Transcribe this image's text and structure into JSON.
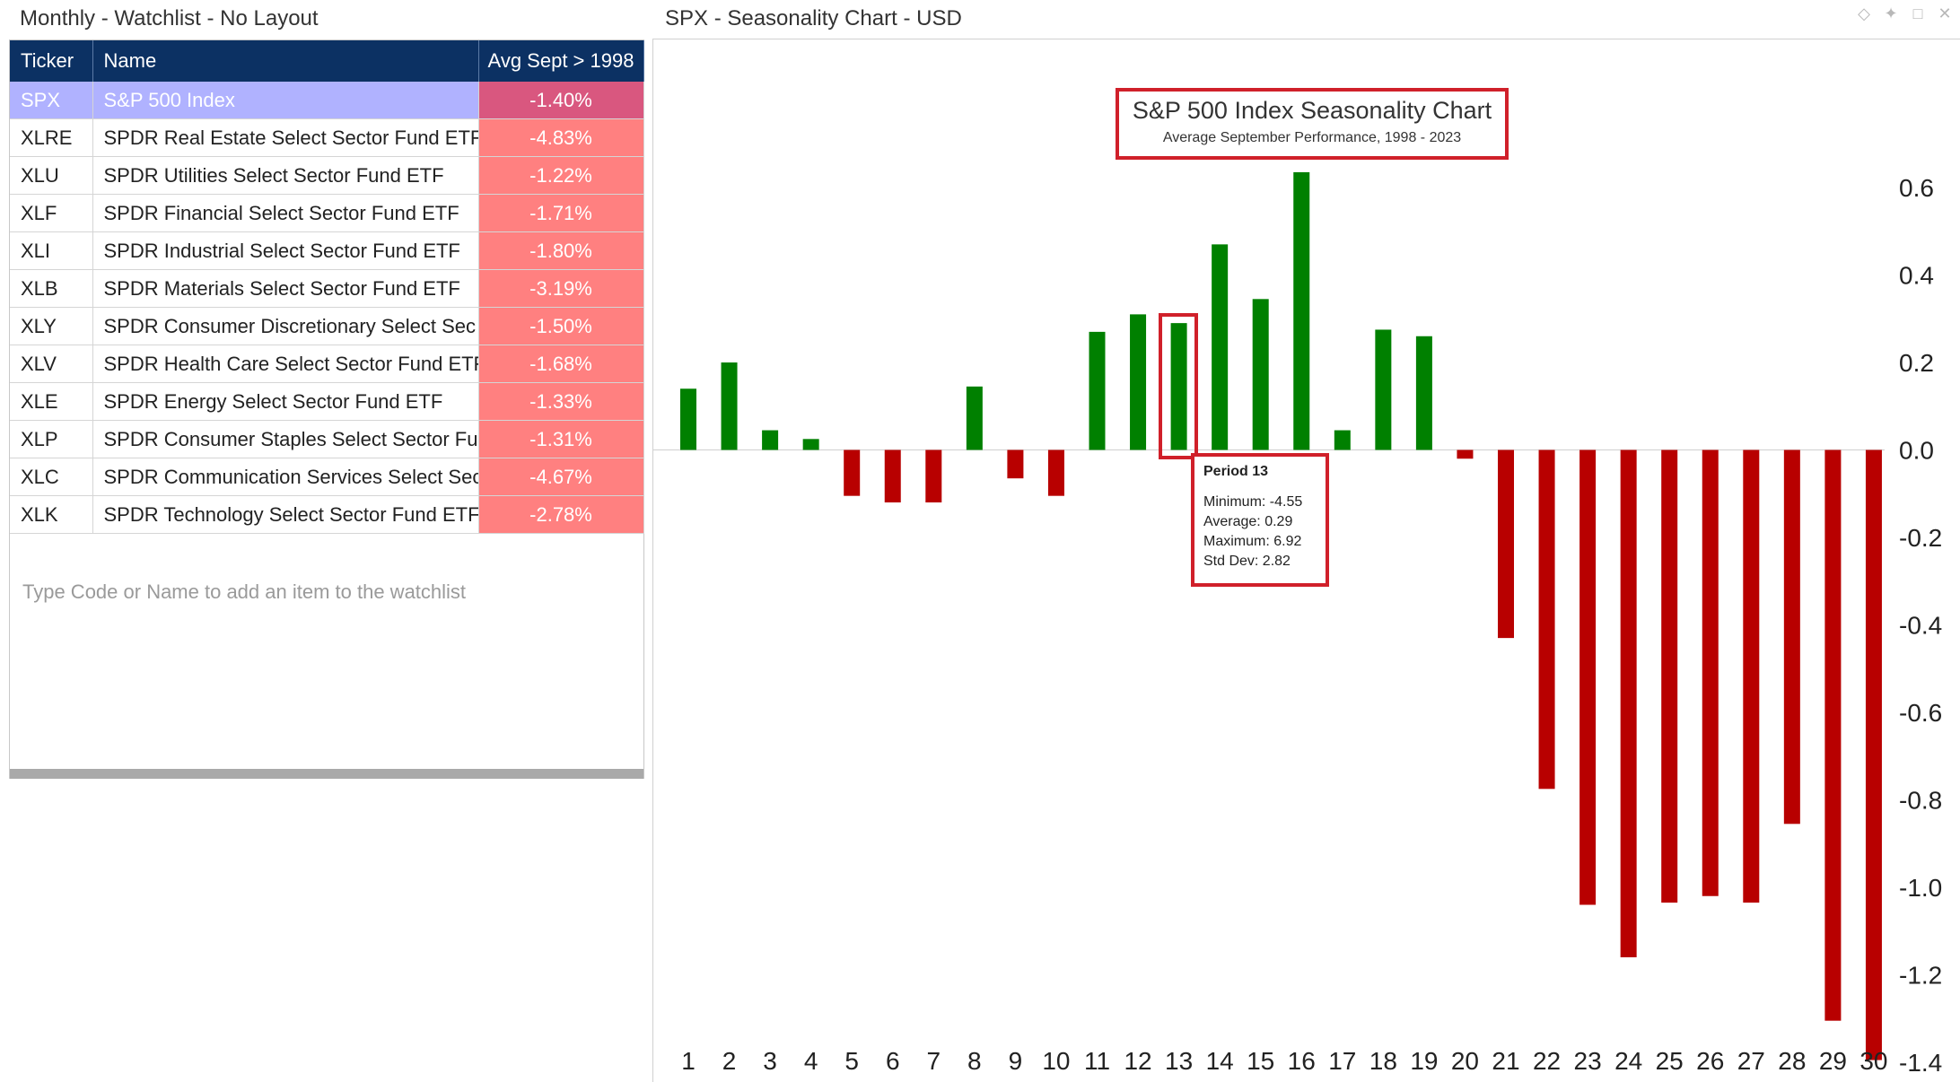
{
  "watchlist": {
    "title": "Monthly - Watchlist - No Layout",
    "columns": [
      "Ticker",
      "Name",
      "Avg Sept > 1998"
    ],
    "rows": [
      {
        "ticker": "SPX",
        "name": "S&P 500 Index",
        "value": "-1.40%",
        "selected": true
      },
      {
        "ticker": "XLRE",
        "name": "SPDR Real Estate Select Sector Fund ETF",
        "value": "-4.83%"
      },
      {
        "ticker": "XLU",
        "name": "SPDR Utilities Select Sector Fund ETF",
        "value": "-1.22%"
      },
      {
        "ticker": "XLF",
        "name": "SPDR Financial Select Sector Fund ETF",
        "value": "-1.71%"
      },
      {
        "ticker": "XLI",
        "name": "SPDR Industrial Select Sector Fund ETF",
        "value": "-1.80%"
      },
      {
        "ticker": "XLB",
        "name": "SPDR Materials Select Sector Fund ETF",
        "value": "-3.19%"
      },
      {
        "ticker": "XLY",
        "name": "SPDR Consumer Discretionary Select Sec",
        "value": "-1.50%"
      },
      {
        "ticker": "XLV",
        "name": "SPDR Health Care Select Sector Fund ETF",
        "value": "-1.68%"
      },
      {
        "ticker": "XLE",
        "name": "SPDR Energy Select Sector Fund ETF",
        "value": "-1.33%"
      },
      {
        "ticker": "XLP",
        "name": "SPDR Consumer Staples Select Sector Fu",
        "value": "-1.31%"
      },
      {
        "ticker": "XLC",
        "name": "SPDR Communication Services Select Sec",
        "value": "-4.67%"
      },
      {
        "ticker": "XLK",
        "name": "SPDR Technology Select Sector Fund ETF",
        "value": "-2.78%"
      }
    ],
    "add_placeholder": "Type Code or Name to add an item to the watchlist"
  },
  "chart_panel": {
    "title": "SPX - Seasonality Chart - USD",
    "window_icons": [
      "diamond-icon",
      "pin-icon",
      "maximize-icon",
      "close-icon"
    ]
  },
  "chart_data": {
    "type": "bar",
    "title": "S&P 500 Index Seasonality Chart",
    "subtitle": "Average September Performance, 1998 - 2023",
    "categories": [
      "1",
      "2",
      "3",
      "4",
      "5",
      "6",
      "7",
      "8",
      "9",
      "10",
      "11",
      "12",
      "13",
      "14",
      "15",
      "16",
      "17",
      "18",
      "19",
      "20",
      "21",
      "22",
      "23",
      "24",
      "25",
      "26",
      "27",
      "28",
      "29",
      "30"
    ],
    "values": [
      0.14,
      0.2,
      0.045,
      0.025,
      -0.105,
      -0.12,
      -0.12,
      0.145,
      -0.065,
      -0.105,
      0.27,
      0.31,
      0.29,
      0.47,
      0.345,
      0.635,
      0.045,
      0.275,
      0.26,
      -0.02,
      -0.43,
      -0.775,
      -1.04,
      -1.16,
      -1.035,
      -1.02,
      -1.035,
      -0.855,
      -1.305,
      -1.395
    ],
    "yticks": [
      "0.6",
      "0.4",
      "0.2",
      "0.0",
      "-0.2",
      "-0.4",
      "-0.6",
      "-0.8",
      "-1.0",
      "-1.2",
      "-1.4"
    ],
    "ylim": [
      -1.45,
      0.68
    ],
    "positive_color": "#008000",
    "negative_color": "#b80000",
    "y_axis_side": "right",
    "highlighted_period": 13,
    "tooltip": {
      "title": "Period 13",
      "lines": [
        "Minimum: -4.55",
        "Average: 0.29",
        "Maximum: 6.92",
        "Std Dev: 2.82"
      ]
    }
  }
}
